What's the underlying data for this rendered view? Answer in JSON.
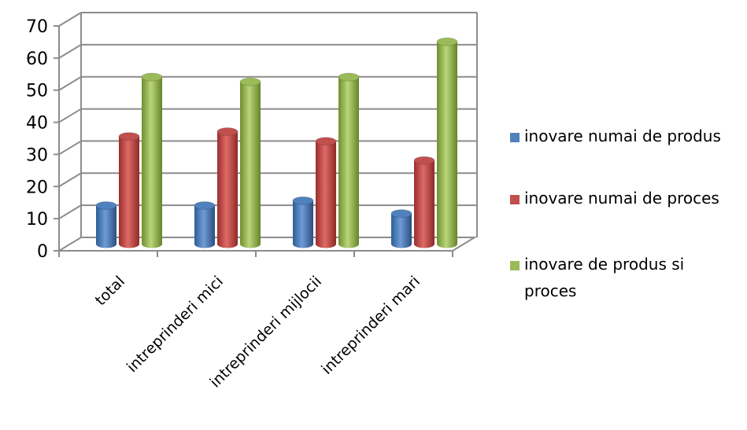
{
  "chart_data": {
    "type": "bar",
    "title": "",
    "xlabel": "",
    "ylabel": "",
    "ylim": [
      0,
      70
    ],
    "yticks": [
      0,
      10,
      20,
      30,
      40,
      50,
      60,
      70
    ],
    "grid": true,
    "legend_position": "right",
    "categories": [
      "total",
      "intreprinderi mici",
      "intreprinderi mijlocii",
      "intreprinderi mari"
    ],
    "series": [
      {
        "name": "inovare numai de produs",
        "color": "#4F81BD",
        "values": [
          12,
          12,
          13.5,
          9.5
        ]
      },
      {
        "name": "inovare numai de proces",
        "color": "#C0504D",
        "values": [
          33.5,
          35,
          32,
          26
        ]
      },
      {
        "name": "inovare de produs si proces",
        "color": "#9BBB59",
        "values": [
          52,
          50.5,
          52,
          63
        ]
      }
    ]
  }
}
